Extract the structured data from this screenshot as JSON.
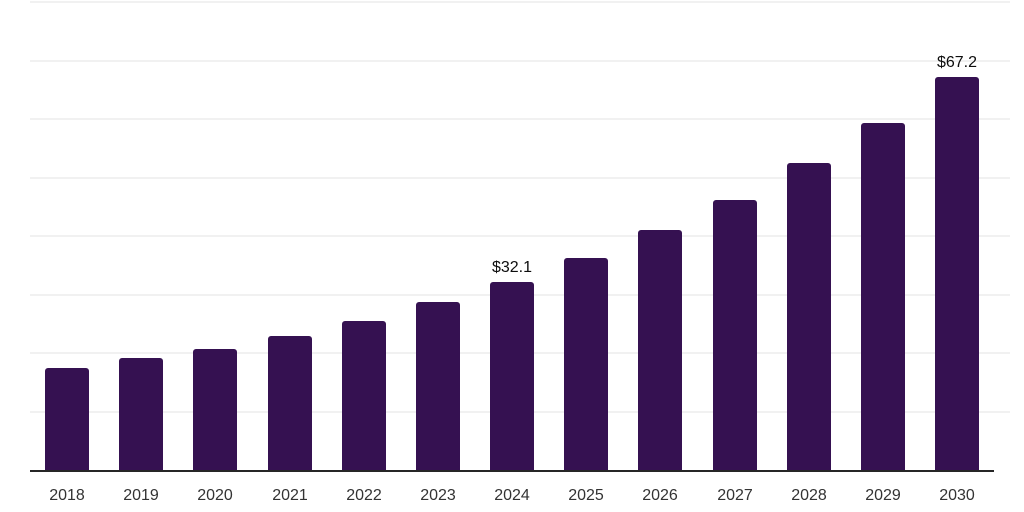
{
  "chart_data": {
    "type": "bar",
    "title": "",
    "xlabel": "",
    "ylabel": "",
    "categories": [
      "2018",
      "2019",
      "2020",
      "2021",
      "2022",
      "2023",
      "2024",
      "2025",
      "2026",
      "2027",
      "2028",
      "2029",
      "2030"
    ],
    "values": [
      17.5,
      19.2,
      20.7,
      22.9,
      25.5,
      28.8,
      32.1,
      36.3,
      41.0,
      46.2,
      52.4,
      59.4,
      67.2
    ],
    "data_labels": [
      {
        "category": "2024",
        "text": "$32.1"
      },
      {
        "category": "2030",
        "text": "$67.2"
      }
    ],
    "ylim": [
      0,
      80
    ],
    "gridline_step": 10,
    "grid_on": true,
    "y_tick_labels_shown": false,
    "legend_position": "none",
    "colors": {
      "bar": "#351151",
      "gridline": "#f1f1f1",
      "axis_line": "#262626",
      "x_tick_label": "#333333",
      "data_label": "#0d0d0d",
      "background": "#ffffff"
    }
  }
}
